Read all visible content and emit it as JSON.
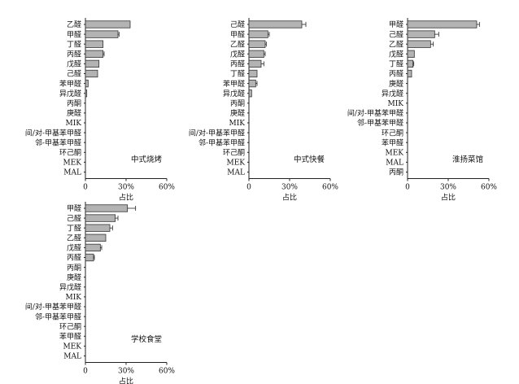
{
  "chart_data": [
    {
      "type": "bar",
      "orientation": "horizontal",
      "title": "中式烧烤",
      "xlabel": "占比",
      "xticks": [
        "0",
        "30%",
        "60%"
      ],
      "xlim": [
        0,
        60
      ],
      "categories": [
        "乙醛",
        "甲醛",
        "丁醛",
        "丙醛",
        "戊醛",
        "己醛",
        "苯甲醛",
        "异戊醛",
        "丙酮",
        "庚醛",
        "MIK",
        "间/对-甲基苯甲醛",
        "邻-甲基苯甲醛",
        "环己酮",
        "MEK",
        "MAL"
      ],
      "values": [
        33,
        24,
        13,
        13,
        10,
        9,
        2,
        1,
        0,
        0,
        0,
        0,
        0,
        0,
        0,
        0
      ],
      "errors": [
        0,
        0.8,
        0,
        0.8,
        0,
        0,
        0,
        0,
        0,
        0,
        0,
        0,
        0,
        0,
        0,
        0
      ]
    },
    {
      "type": "bar",
      "orientation": "horizontal",
      "title": "中式快餐",
      "xlabel": "占比",
      "xticks": [
        "0",
        "30%",
        "60%"
      ],
      "xlim": [
        0,
        60
      ],
      "categories": [
        "己醛",
        "甲醛",
        "乙醛",
        "戊醛",
        "丙醛",
        "丁醛",
        "苯甲醛",
        "异戊醛",
        "丙酮",
        "庚醛",
        "MIK",
        "间/对-甲基苯甲醛",
        "邻-甲基苯甲醛",
        "环己酮",
        "MEK",
        "MAL"
      ],
      "values": [
        39,
        14,
        12,
        11,
        9,
        6,
        5,
        2,
        0,
        0,
        0,
        0,
        0,
        0,
        0,
        0
      ],
      "errors": [
        3,
        1,
        0.8,
        1,
        2,
        0,
        1,
        0,
        0,
        0,
        0,
        0,
        0,
        0,
        0,
        0
      ]
    },
    {
      "type": "bar",
      "orientation": "horizontal",
      "title": "淮扬菜馆",
      "xlabel": "占比",
      "xticks": [
        "0",
        "30%",
        "60%"
      ],
      "xlim": [
        0,
        60
      ],
      "categories": [
        "甲醛",
        "己醛",
        "乙醛",
        "戊醛",
        "丁醛",
        "丙醛",
        "庚醛",
        "异戊醛",
        "MIK",
        "间/对-甲基苯甲醛",
        "邻-甲基苯甲醛",
        "环己酮",
        "苯甲醛",
        "MEK",
        "MAL",
        "丙酮"
      ],
      "values": [
        51,
        20,
        17,
        5,
        4,
        3,
        0,
        0,
        0,
        0,
        0,
        0,
        0,
        0,
        0,
        0
      ],
      "errors": [
        2,
        3,
        2,
        0,
        0.6,
        0,
        0,
        0,
        0,
        0,
        0,
        0,
        0,
        0,
        0,
        0
      ]
    },
    {
      "type": "bar",
      "orientation": "horizontal",
      "title": "学校食堂",
      "xlabel": "占比",
      "xticks": [
        "0",
        "30%",
        "60%"
      ],
      "xlim": [
        0,
        60
      ],
      "categories": [
        "甲醛",
        "己醛",
        "丁醛",
        "乙醛",
        "戊醛",
        "丙醛",
        "丙酮",
        "庚醛",
        "异戊醛",
        "MIK",
        "间/对-甲基苯甲醛",
        "邻-甲基苯甲醛",
        "环己酮",
        "苯甲醛",
        "MEK",
        "MAL"
      ],
      "values": [
        31,
        22,
        18,
        15,
        11,
        6,
        0,
        0,
        0,
        0,
        0,
        0,
        0,
        0,
        0,
        0
      ],
      "errors": [
        6,
        2,
        2,
        0,
        1,
        0.6,
        0,
        0,
        0,
        0,
        0,
        0,
        0,
        0,
        0,
        0
      ]
    }
  ]
}
